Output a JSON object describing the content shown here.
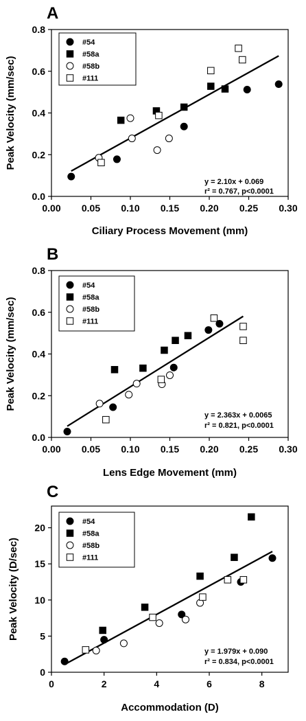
{
  "chart_data": [
    {
      "panel": "A",
      "type": "scatter",
      "xlabel": "Ciliary Process Movement (mm)",
      "ylabel": "Peak Velocity (mm/sec)",
      "xlim": [
        0,
        0.3
      ],
      "ylim": [
        0,
        0.8
      ],
      "xticks": [
        0,
        0.05,
        0.1,
        0.15,
        0.2,
        0.25,
        0.3
      ],
      "xtick_labels": [
        "0.00",
        "0.05",
        "0.10",
        "0.15",
        "0.20",
        "0.25",
        "0.30"
      ],
      "yticks": [
        0,
        0.2,
        0.4,
        0.6,
        0.8
      ],
      "ytick_labels": [
        "0.0",
        "0.2",
        "0.4",
        "0.6",
        "0.8"
      ],
      "legend_position": "top-left",
      "series": [
        {
          "name": "#54",
          "marker": "filled-circle",
          "points": [
            [
              0.025,
              0.095
            ],
            [
              0.083,
              0.178
            ],
            [
              0.168,
              0.335
            ],
            [
              0.248,
              0.512
            ],
            [
              0.288,
              0.538
            ]
          ]
        },
        {
          "name": "#58a",
          "marker": "filled-square",
          "points": [
            [
              0.088,
              0.365
            ],
            [
              0.133,
              0.41
            ],
            [
              0.168,
              0.428
            ],
            [
              0.202,
              0.528
            ],
            [
              0.22,
              0.515
            ]
          ]
        },
        {
          "name": "#58b",
          "marker": "open-circle",
          "points": [
            [
              0.06,
              0.185
            ],
            [
              0.1,
              0.375
            ],
            [
              0.102,
              0.278
            ],
            [
              0.134,
              0.222
            ],
            [
              0.149,
              0.278
            ]
          ]
        },
        {
          "name": "#111",
          "marker": "open-square",
          "points": [
            [
              0.063,
              0.162
            ],
            [
              0.136,
              0.388
            ],
            [
              0.202,
              0.603
            ],
            [
              0.237,
              0.71
            ],
            [
              0.242,
              0.655
            ]
          ]
        }
      ],
      "fit": {
        "slope": 2.1,
        "intercept": 0.069,
        "x_range": [
          0.025,
          0.288
        ]
      },
      "equation_lines": [
        "y = 2.10x + 0.069",
        "r² = 0.767, p<0.0001"
      ]
    },
    {
      "panel": "B",
      "type": "scatter",
      "xlabel": "Lens  Edge Movement (mm)",
      "ylabel": "Peak Velocity (mm/sec)",
      "xlim": [
        0,
        0.3
      ],
      "ylim": [
        0,
        0.8
      ],
      "xticks": [
        0,
        0.05,
        0.1,
        0.15,
        0.2,
        0.25,
        0.3
      ],
      "xtick_labels": [
        "0.00",
        "0.05",
        "0.10",
        "0.15",
        "0.20",
        "0.25",
        "0.30"
      ],
      "yticks": [
        0,
        0.2,
        0.4,
        0.6,
        0.8
      ],
      "ytick_labels": [
        "0.0",
        "0.2",
        "0.4",
        "0.6",
        "0.8"
      ],
      "legend_position": "top-left",
      "series": [
        {
          "name": "#54",
          "marker": "filled-circle",
          "points": [
            [
              0.02,
              0.028
            ],
            [
              0.078,
              0.145
            ],
            [
              0.155,
              0.335
            ],
            [
              0.199,
              0.515
            ],
            [
              0.213,
              0.545
            ]
          ]
        },
        {
          "name": "#58a",
          "marker": "filled-square",
          "points": [
            [
              0.08,
              0.325
            ],
            [
              0.116,
              0.332
            ],
            [
              0.143,
              0.418
            ],
            [
              0.157,
              0.465
            ],
            [
              0.173,
              0.488
            ]
          ]
        },
        {
          "name": "#58b",
          "marker": "open-circle",
          "points": [
            [
              0.061,
              0.162
            ],
            [
              0.098,
              0.205
            ],
            [
              0.108,
              0.258
            ],
            [
              0.14,
              0.255
            ],
            [
              0.15,
              0.298
            ]
          ]
        },
        {
          "name": "#111",
          "marker": "open-square",
          "points": [
            [
              0.069,
              0.085
            ],
            [
              0.139,
              0.278
            ],
            [
              0.206,
              0.572
            ],
            [
              0.243,
              0.532
            ],
            [
              0.243,
              0.465
            ]
          ]
        }
      ],
      "fit": {
        "slope": 2.363,
        "intercept": 0.0065,
        "x_range": [
          0.02,
          0.243
        ]
      },
      "equation_lines": [
        "y = 2.363x + 0.0065",
        "r² = 0.821, p<0.0001"
      ]
    },
    {
      "panel": "C",
      "type": "scatter",
      "xlabel": "Accommodation (D)",
      "ylabel": "Peak Velocity (D/sec)",
      "xlim": [
        0,
        9
      ],
      "ylim": [
        0,
        23
      ],
      "xticks": [
        0,
        2,
        4,
        6,
        8
      ],
      "xtick_labels": [
        "0",
        "2",
        "4",
        "6",
        "8"
      ],
      "yticks": [
        0,
        5,
        10,
        15,
        20
      ],
      "ytick_labels": [
        "0",
        "5",
        "10",
        "15",
        "20"
      ],
      "legend_position": "top-left",
      "series": [
        {
          "name": "#54",
          "marker": "filled-circle",
          "points": [
            [
              0.5,
              1.5
            ],
            [
              2.0,
              4.5
            ],
            [
              4.95,
              8.0
            ],
            [
              7.2,
              12.5
            ],
            [
              8.4,
              15.8
            ]
          ]
        },
        {
          "name": "#58a",
          "marker": "filled-square",
          "points": [
            [
              1.95,
              5.8
            ],
            [
              3.55,
              9.0
            ],
            [
              5.65,
              13.3
            ],
            [
              6.95,
              15.9
            ],
            [
              7.6,
              21.5
            ]
          ]
        },
        {
          "name": "#58b",
          "marker": "open-circle",
          "points": [
            [
              1.7,
              3.0
            ],
            [
              2.75,
              4.0
            ],
            [
              4.1,
              6.8
            ],
            [
              5.1,
              7.3
            ],
            [
              5.65,
              9.6
            ]
          ]
        },
        {
          "name": "#111",
          "marker": "open-square",
          "points": [
            [
              1.3,
              3.1
            ],
            [
              3.85,
              7.6
            ],
            [
              5.75,
              10.4
            ],
            [
              6.7,
              12.8
            ],
            [
              7.3,
              12.8
            ]
          ]
        }
      ],
      "fit": {
        "slope": 1.979,
        "intercept": 0.09,
        "x_range": [
          0.5,
          8.4
        ]
      },
      "equation_lines": [
        "y = 1.979x + 0.090",
        "r² = 0.834, p<0.0001"
      ]
    }
  ]
}
